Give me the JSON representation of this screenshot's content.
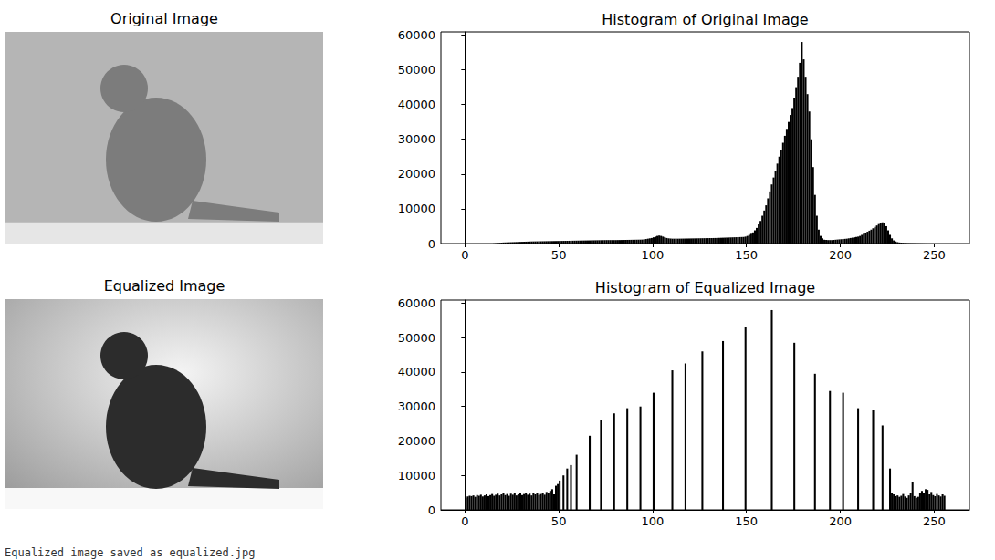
{
  "images": [
    {
      "title": "Original Image"
    },
    {
      "title": "Equalized Image"
    }
  ],
  "footer": "Equalized image saved as equalized.jpg",
  "chart_data": [
    {
      "type": "histogram",
      "title": "Histogram of Original Image",
      "color": "#000000",
      "grid": false,
      "xlim": [
        -12.8,
        268.8
      ],
      "xticks": [
        0,
        50,
        100,
        150,
        200,
        250
      ],
      "ylim": [
        0,
        60900
      ],
      "yticks": [
        0,
        10000,
        20000,
        30000,
        40000,
        50000,
        60000
      ],
      "bins": [
        0,
        1,
        2,
        3,
        4,
        5,
        6,
        7,
        8,
        9,
        10,
        11,
        12,
        13,
        14,
        15,
        16,
        17,
        18,
        19,
        20,
        21,
        22,
        23,
        24,
        25,
        26,
        27,
        28,
        29,
        30,
        31,
        32,
        33,
        34,
        35,
        36,
        37,
        38,
        39,
        40,
        41,
        42,
        43,
        44,
        45,
        46,
        47,
        48,
        49,
        50,
        51,
        52,
        53,
        54,
        55,
        56,
        57,
        58,
        59,
        60,
        61,
        62,
        63,
        64,
        65,
        66,
        67,
        68,
        69,
        70,
        71,
        72,
        73,
        74,
        75,
        76,
        77,
        78,
        79,
        80,
        81,
        82,
        83,
        84,
        85,
        86,
        87,
        88,
        89,
        90,
        91,
        92,
        93,
        94,
        95,
        96,
        97,
        98,
        99,
        100,
        101,
        102,
        103,
        104,
        105,
        106,
        107,
        108,
        109,
        110,
        111,
        112,
        113,
        114,
        115,
        116,
        117,
        118,
        119,
        120,
        121,
        122,
        123,
        124,
        125,
        126,
        127,
        128,
        129,
        130,
        131,
        132,
        133,
        134,
        135,
        136,
        137,
        138,
        139,
        140,
        141,
        142,
        143,
        144,
        145,
        146,
        147,
        148,
        149,
        150,
        151,
        152,
        153,
        154,
        155,
        156,
        157,
        158,
        159,
        160,
        161,
        162,
        163,
        164,
        165,
        166,
        167,
        168,
        169,
        170,
        171,
        172,
        173,
        174,
        175,
        176,
        177,
        178,
        179,
        180,
        181,
        182,
        183,
        184,
        185,
        186,
        187,
        188,
        189,
        190,
        191,
        192,
        193,
        194,
        195,
        196,
        197,
        198,
        199,
        200,
        201,
        202,
        203,
        204,
        205,
        206,
        207,
        208,
        209,
        210,
        211,
        212,
        213,
        214,
        215,
        216,
        217,
        218,
        219,
        220,
        221,
        222,
        223,
        224,
        225,
        226,
        227,
        228,
        229,
        230,
        231,
        232,
        233,
        234,
        235,
        236,
        237,
        238,
        239,
        240,
        241,
        242,
        243,
        244,
        245,
        246,
        247,
        248,
        249,
        250,
        251,
        252,
        253,
        254,
        255,
        256
      ],
      "counts": [
        0,
        0,
        0,
        0,
        0,
        0,
        0,
        0,
        0,
        0,
        0,
        0,
        0,
        0,
        0,
        50,
        100,
        150,
        200,
        250,
        300,
        320,
        340,
        360,
        380,
        400,
        420,
        440,
        460,
        480,
        500,
        520,
        540,
        560,
        580,
        600,
        610,
        620,
        630,
        640,
        650,
        660,
        670,
        680,
        690,
        700,
        710,
        720,
        730,
        740,
        750,
        760,
        770,
        780,
        790,
        800,
        810,
        820,
        830,
        840,
        850,
        860,
        870,
        880,
        890,
        900,
        910,
        920,
        930,
        940,
        950,
        960,
        970,
        980,
        990,
        1000,
        1000,
        1000,
        1000,
        1000,
        1000,
        1010,
        1020,
        1030,
        1040,
        1050,
        1060,
        1070,
        1080,
        1090,
        1100,
        1110,
        1120,
        1130,
        1150,
        1200,
        1300,
        1400,
        1500,
        1600,
        1800,
        2000,
        2200,
        2300,
        2200,
        2000,
        1800,
        1600,
        1500,
        1450,
        1400,
        1400,
        1400,
        1400,
        1410,
        1420,
        1430,
        1440,
        1450,
        1460,
        1470,
        1480,
        1490,
        1500,
        1510,
        1520,
        1530,
        1540,
        1550,
        1560,
        1570,
        1580,
        1590,
        1600,
        1620,
        1640,
        1660,
        1680,
        1700,
        1720,
        1740,
        1760,
        1780,
        1800,
        1820,
        1840,
        1860,
        1880,
        1900,
        2000,
        2200,
        2500,
        2800,
        3200,
        3800,
        4500,
        5500,
        6500,
        8000,
        9500,
        11000,
        13000,
        15000,
        17000,
        19000,
        21000,
        23000,
        25000,
        27000,
        29000,
        31000,
        33000,
        35000,
        37000,
        39000,
        42000,
        45000,
        48000,
        52000,
        58000,
        53000,
        48000,
        43000,
        38000,
        30000,
        22000,
        14000,
        8000,
        4000,
        2200,
        1500,
        1100,
        1050,
        1000,
        1000,
        1000,
        1050,
        1100,
        1150,
        1200,
        1250,
        1300,
        1350,
        1400,
        1500,
        1600,
        1700,
        1800,
        1900,
        2000,
        2200,
        2500,
        2800,
        3100,
        3400,
        3700,
        4000,
        4400,
        4800,
        5200,
        5600,
        5900,
        6100,
        5800,
        5000,
        3800,
        2500,
        1500,
        900,
        600,
        400,
        300,
        250,
        200,
        150,
        120,
        100,
        90,
        80,
        70,
        60,
        50,
        40,
        30,
        20,
        10,
        0,
        0,
        0,
        0,
        0,
        0,
        0,
        0,
        0,
        0
      ]
    },
    {
      "type": "histogram",
      "title": "Histogram of Equalized Image",
      "color": "#000000",
      "grid": false,
      "xlim": [
        -12.8,
        268.8
      ],
      "xticks": [
        0,
        50,
        100,
        150,
        200,
        250
      ],
      "ylim": [
        0,
        60900
      ],
      "yticks": [
        0,
        10000,
        20000,
        30000,
        40000,
        50000,
        60000
      ],
      "bins": [
        0,
        1,
        2,
        3,
        4,
        5,
        6,
        7,
        8,
        9,
        10,
        11,
        12,
        13,
        14,
        15,
        16,
        17,
        18,
        19,
        20,
        21,
        22,
        23,
        24,
        25,
        26,
        27,
        28,
        29,
        30,
        31,
        32,
        33,
        34,
        35,
        36,
        37,
        38,
        39,
        40,
        41,
        42,
        43,
        44,
        45,
        46,
        47,
        48,
        49,
        50,
        51,
        52,
        53,
        54,
        55,
        56,
        57,
        58,
        59,
        60,
        61,
        62,
        63,
        64,
        65,
        66,
        67,
        68,
        69,
        70,
        71,
        72,
        73,
        74,
        75,
        76,
        77,
        78,
        79,
        80,
        81,
        82,
        83,
        84,
        85,
        86,
        87,
        88,
        89,
        90,
        91,
        92,
        93,
        94,
        95,
        96,
        97,
        98,
        99,
        100,
        101,
        102,
        103,
        104,
        105,
        106,
        107,
        108,
        109,
        110,
        111,
        112,
        113,
        114,
        115,
        116,
        117,
        118,
        119,
        120,
        121,
        122,
        123,
        124,
        125,
        126,
        127,
        128,
        129,
        130,
        131,
        132,
        133,
        134,
        135,
        136,
        137,
        138,
        139,
        140,
        141,
        142,
        143,
        144,
        145,
        146,
        147,
        148,
        149,
        150,
        151,
        152,
        153,
        154,
        155,
        156,
        157,
        158,
        159,
        160,
        161,
        162,
        163,
        164,
        165,
        166,
        167,
        168,
        169,
        170,
        171,
        172,
        173,
        174,
        175,
        176,
        177,
        178,
        179,
        180,
        181,
        182,
        183,
        184,
        185,
        186,
        187,
        188,
        189,
        190,
        191,
        192,
        193,
        194,
        195,
        196,
        197,
        198,
        199,
        200,
        201,
        202,
        203,
        204,
        205,
        206,
        207,
        208,
        209,
        210,
        211,
        212,
        213,
        214,
        215,
        216,
        217,
        218,
        219,
        220,
        221,
        222,
        223,
        224,
        225,
        226,
        227,
        228,
        229,
        230,
        231,
        232,
        233,
        234,
        235,
        236,
        237,
        238,
        239,
        240,
        241,
        242,
        243,
        244,
        245,
        246,
        247,
        248,
        249,
        250,
        251,
        252,
        253,
        254,
        255,
        256
      ],
      "counts": [
        3500,
        3900,
        4100,
        4000,
        4200,
        3800,
        4300,
        4100,
        4400,
        3900,
        4200,
        4500,
        4000,
        4300,
        4600,
        4100,
        4400,
        4700,
        4200,
        4500,
        4800,
        4300,
        4600,
        4100,
        4700,
        4400,
        4900,
        4200,
        4500,
        4800,
        4300,
        4600,
        4900,
        4400,
        4700,
        4200,
        5000,
        4500,
        4800,
        4300,
        4600,
        4900,
        4400,
        5200,
        4800,
        5500,
        6000,
        4500,
        7000,
        7500,
        8500,
        0,
        10000,
        0,
        12000,
        0,
        13000,
        0,
        0,
        16000,
        0,
        0,
        0,
        0,
        0,
        0,
        21500,
        0,
        0,
        0,
        0,
        0,
        26000,
        0,
        0,
        0,
        0,
        0,
        0,
        28000,
        0,
        0,
        0,
        0,
        0,
        0,
        29500,
        0,
        0,
        0,
        0,
        0,
        0,
        30000,
        0,
        0,
        0,
        0,
        0,
        0,
        34000,
        0,
        0,
        0,
        0,
        0,
        0,
        0,
        0,
        0,
        40500,
        0,
        0,
        0,
        0,
        0,
        0,
        42500,
        0,
        0,
        0,
        0,
        0,
        0,
        0,
        0,
        46000,
        0,
        0,
        0,
        0,
        0,
        0,
        0,
        0,
        0,
        0,
        49000,
        0,
        0,
        0,
        0,
        0,
        0,
        0,
        0,
        0,
        0,
        0,
        53000,
        0,
        0,
        0,
        0,
        0,
        0,
        0,
        0,
        0,
        0,
        0,
        0,
        0,
        58000,
        0,
        0,
        0,
        0,
        0,
        0,
        0,
        0,
        0,
        0,
        0,
        48500,
        0,
        0,
        0,
        0,
        0,
        0,
        0,
        0,
        0,
        0,
        39500,
        0,
        0,
        0,
        0,
        0,
        0,
        0,
        34500,
        0,
        0,
        0,
        0,
        0,
        0,
        34000,
        0,
        0,
        0,
        0,
        0,
        0,
        0,
        29500,
        0,
        0,
        0,
        0,
        0,
        0,
        0,
        29000,
        0,
        0,
        0,
        0,
        24500,
        0,
        0,
        0,
        12000,
        5000,
        4500,
        4000,
        4200,
        3800,
        4100,
        4600,
        3900,
        3500,
        4200,
        4800,
        8000,
        4000,
        3500,
        3800,
        5000,
        5500,
        4800,
        6000,
        5800,
        4500,
        5200,
        4300,
        4000,
        4600,
        4200,
        3900,
        4500,
        4100
      ]
    }
  ]
}
